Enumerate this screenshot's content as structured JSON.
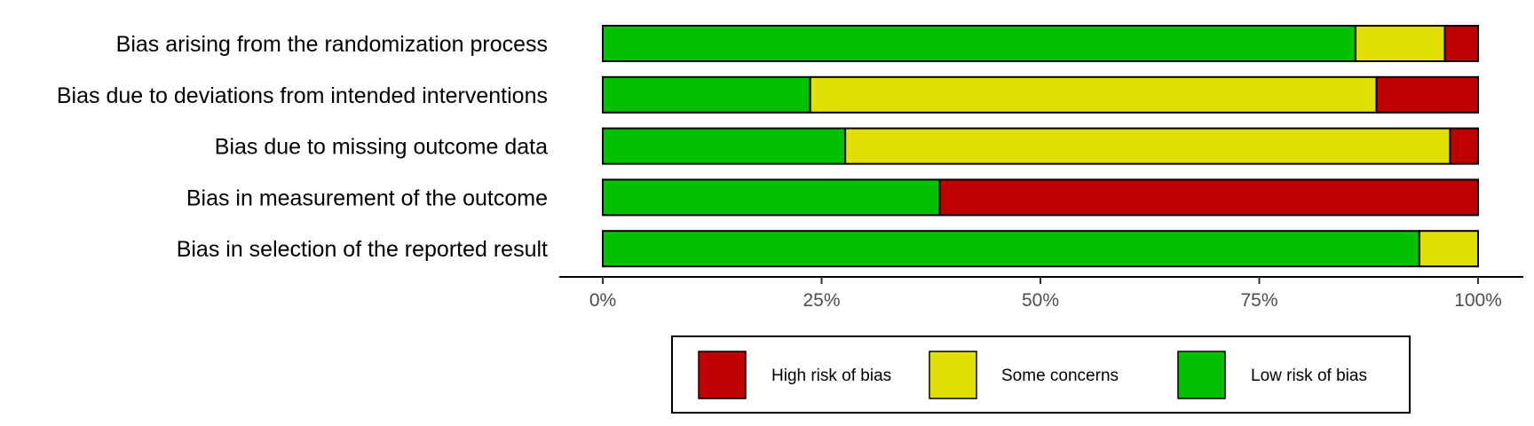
{
  "chart_data": {
    "type": "bar",
    "orientation": "horizontal",
    "stacked": true,
    "categories": [
      "Bias arising from the randomization process",
      "Bias due to deviations from intended interventions",
      "Bias due to missing outcome data",
      "Bias in measurement of the outcome",
      "Bias in selection of the reported result"
    ],
    "series": [
      {
        "name": "Low risk of bias",
        "color": "#02C100",
        "values": [
          86.0,
          23.7,
          27.7,
          38.5,
          93.3
        ]
      },
      {
        "name": "Some concerns",
        "color": "#E2DF07",
        "values": [
          10.2,
          64.7,
          69.1,
          0.0,
          6.7
        ]
      },
      {
        "name": "High risk of bias",
        "color": "#BF0000",
        "values": [
          3.8,
          11.6,
          3.2,
          61.5,
          0.0
        ]
      }
    ],
    "xlim": [
      0,
      100
    ],
    "x_ticks": [
      "0%",
      "25%",
      "50%",
      "75%",
      "100%"
    ],
    "x_tick_values": [
      0,
      25,
      50,
      75,
      100
    ],
    "legend": {
      "placement": "bottom",
      "order": [
        "High risk of bias",
        "Some concerns",
        "Low risk of bias"
      ]
    },
    "grid": false
  }
}
